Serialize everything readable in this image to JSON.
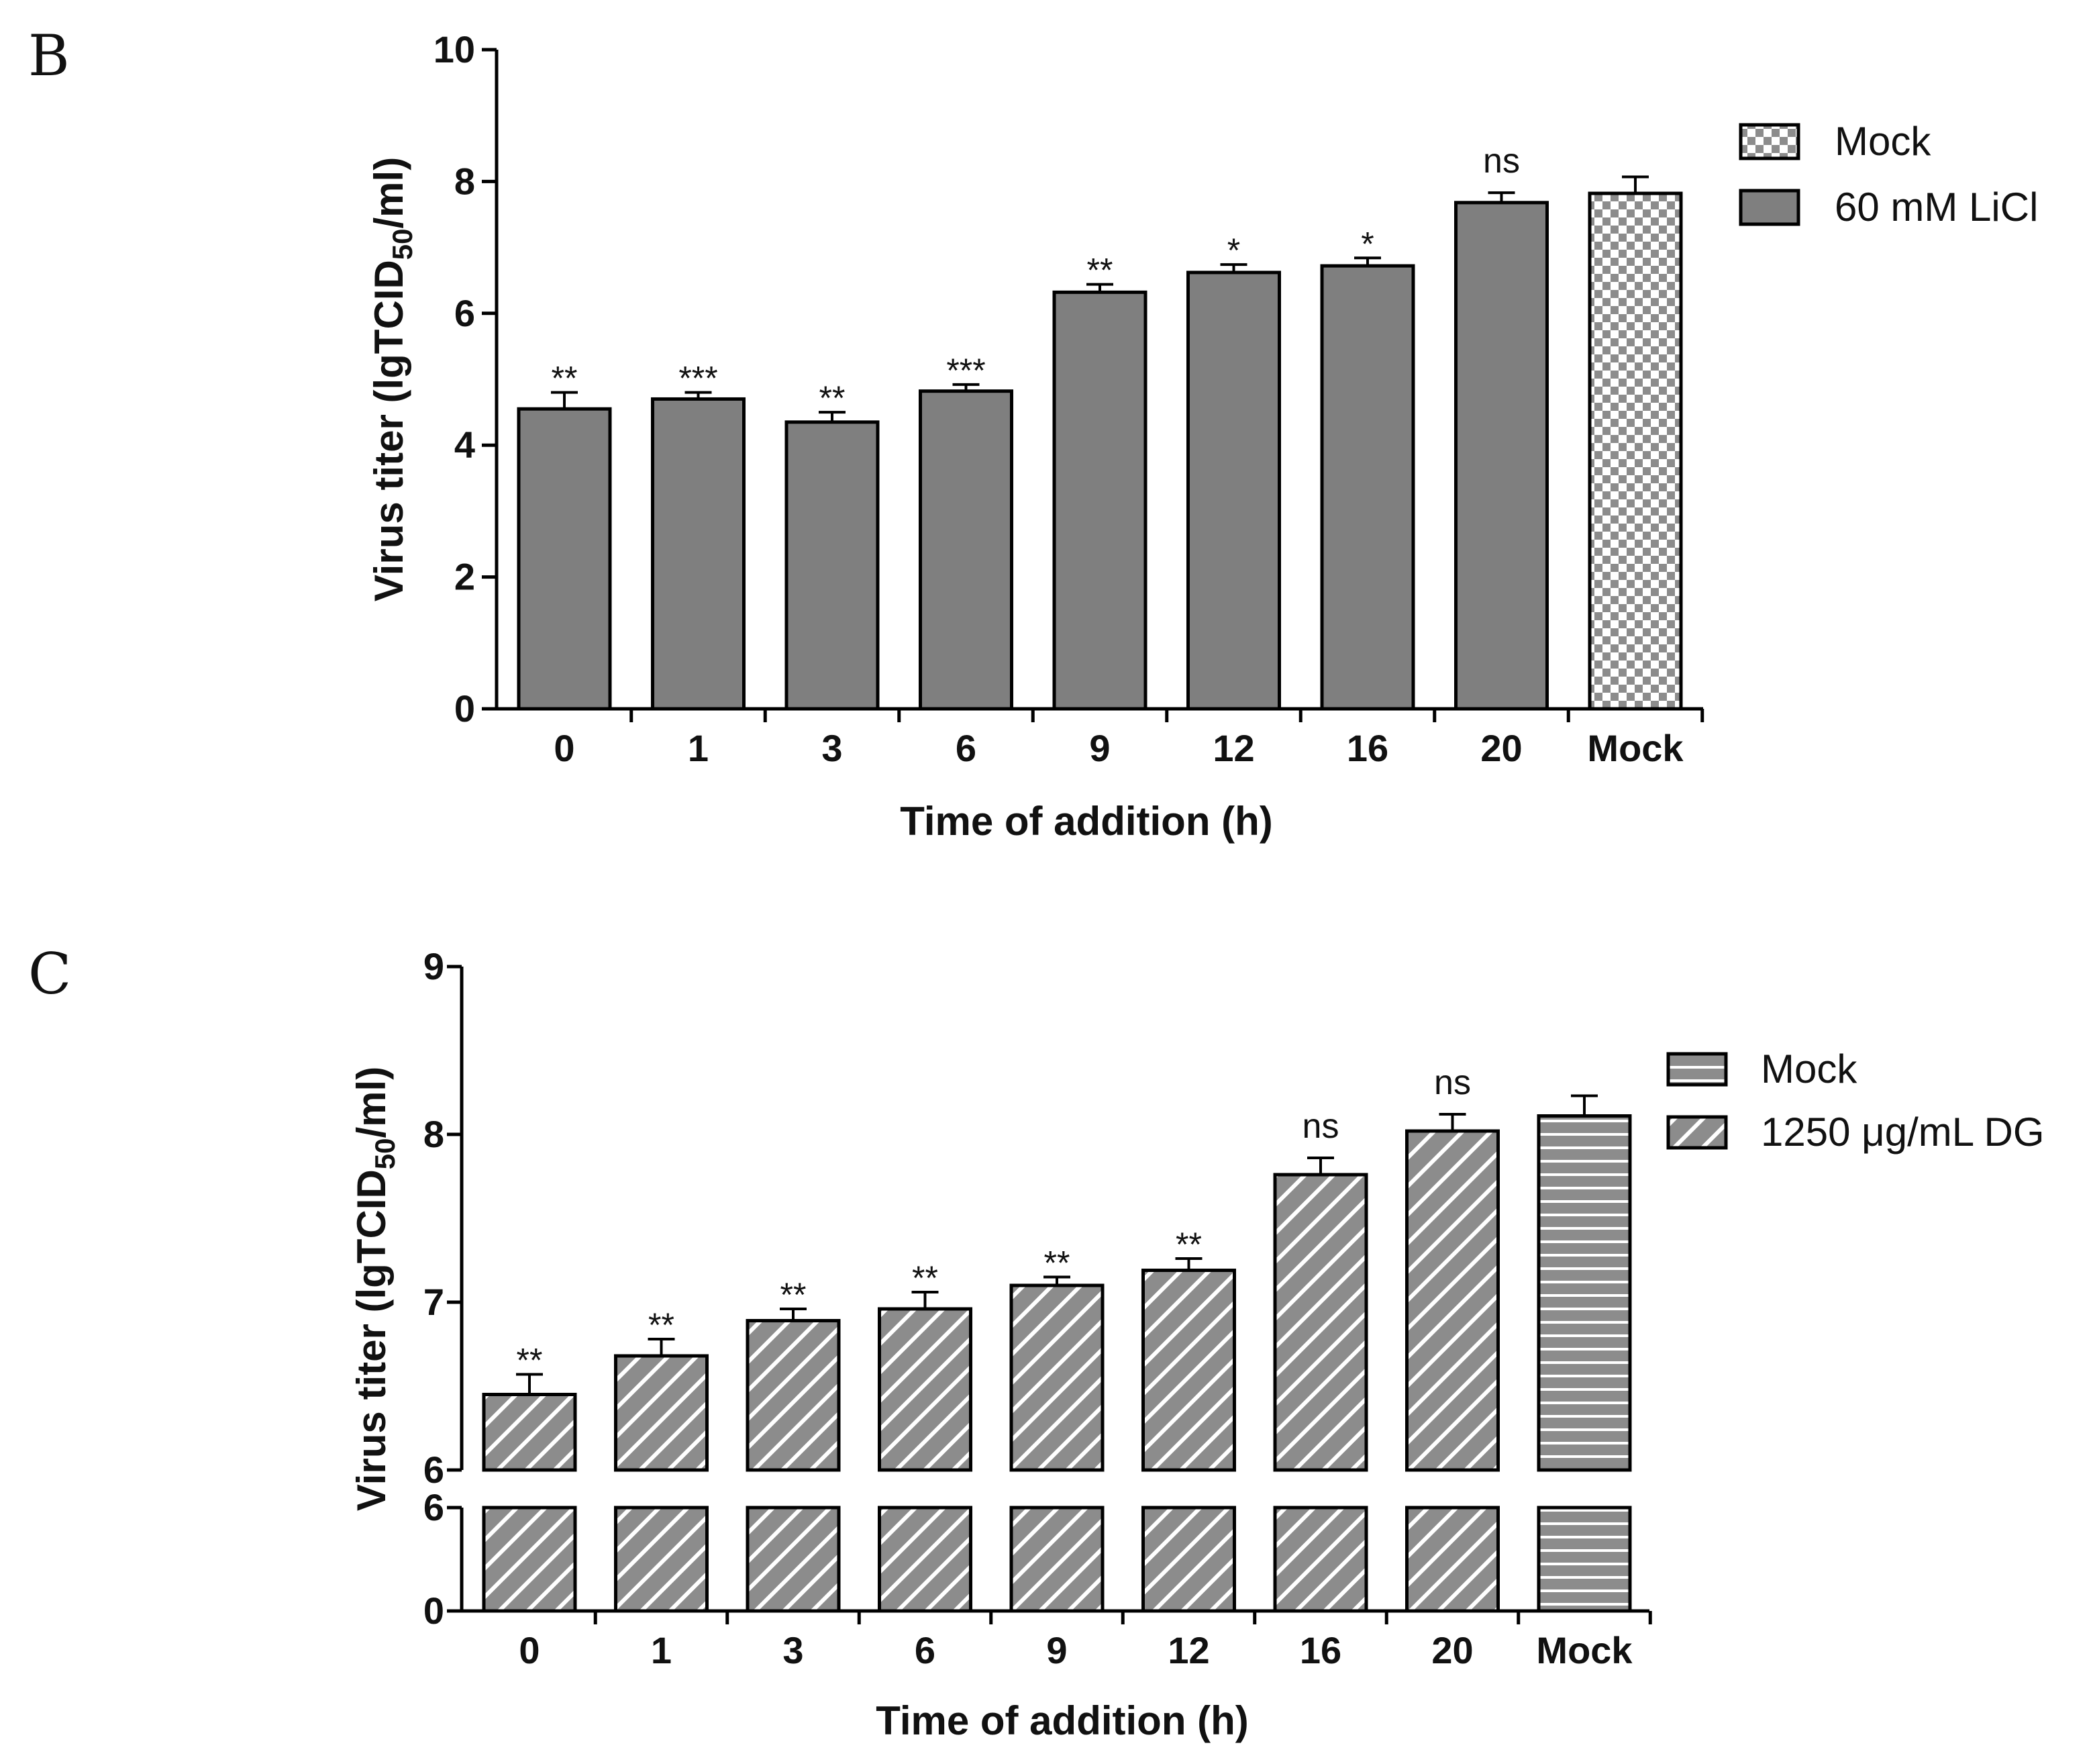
{
  "chart_data": [
    {
      "panel": "B",
      "type": "bar",
      "title": "",
      "xlabel": "Time of addition (h)",
      "ylabel_main": "Virus titer (lgTCID",
      "ylabel_sub": "50",
      "ylabel_end": "/ml)",
      "ylim": [
        0,
        10
      ],
      "yticks": [
        0,
        2,
        4,
        6,
        8,
        10
      ],
      "categories": [
        "0",
        "1",
        "3",
        "6",
        "9",
        "12",
        "16",
        "20",
        "Mock"
      ],
      "values": [
        4.55,
        4.7,
        4.35,
        4.82,
        6.32,
        6.62,
        6.72,
        7.68,
        7.82
      ],
      "errors": [
        0.25,
        0.1,
        0.15,
        0.1,
        0.12,
        0.12,
        0.12,
        0.15,
        0.25
      ],
      "significance": [
        "**",
        "***",
        "**",
        "***",
        "**",
        "*",
        "*",
        "ns",
        ""
      ],
      "series": [
        {
          "name": "60 mM LiCl",
          "pattern": "solid",
          "color": "#7f7f7f"
        },
        {
          "name": "Mock",
          "pattern": "checker",
          "color": "#8c8c8c"
        }
      ],
      "legend": [
        "Mock",
        "60 mM LiCl"
      ],
      "legend_position": "top-right"
    },
    {
      "panel": "C",
      "type": "bar",
      "title": "",
      "xlabel": "Time of addition (h)",
      "ylabel_main": "Virus titer (lgTCID",
      "ylabel_sub": "50",
      "ylabel_end": "/ml)",
      "axis_break": true,
      "ylim_upper": [
        6,
        9
      ],
      "ylim_lower": [
        0,
        6
      ],
      "yticks_upper": [
        6,
        7,
        8,
        9
      ],
      "yticks_lower": [
        0,
        6
      ],
      "categories": [
        "0",
        "1",
        "3",
        "6",
        "9",
        "12",
        "16",
        "20",
        "Mock"
      ],
      "values": [
        6.45,
        6.68,
        6.89,
        6.96,
        7.1,
        7.19,
        7.76,
        8.02,
        8.11
      ],
      "errors": [
        0.12,
        0.1,
        0.07,
        0.1,
        0.05,
        0.07,
        0.1,
        0.1,
        0.12
      ],
      "significance": [
        "**",
        "**",
        "**",
        "**",
        "**",
        "**",
        "ns",
        "ns",
        ""
      ],
      "series": [
        {
          "name": "1250 μg/mL DG",
          "pattern": "diagonal",
          "color": "#8c8c8c"
        },
        {
          "name": "Mock",
          "pattern": "horizontal",
          "color": "#8c8c8c"
        }
      ],
      "legend": [
        "Mock",
        "1250 μg/mL DG"
      ],
      "legend_position": "top-right"
    }
  ]
}
